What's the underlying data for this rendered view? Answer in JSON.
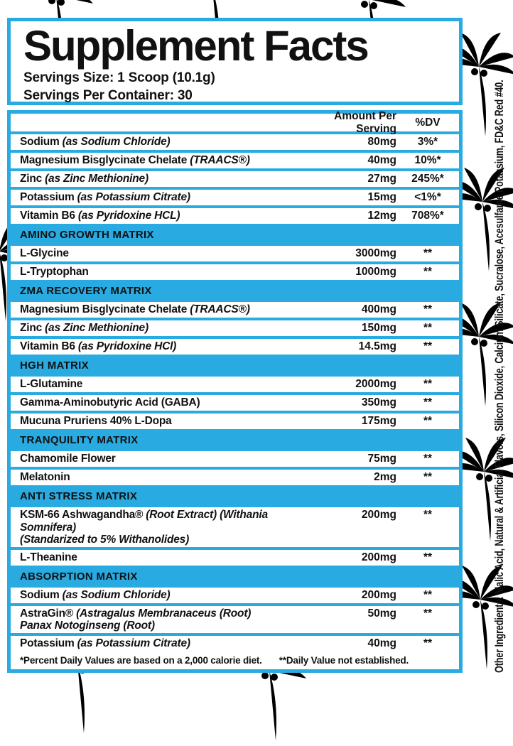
{
  "colors": {
    "accent": "#29abe2",
    "watermark": "#e2e2e2"
  },
  "header": {
    "title": "Supplement Facts",
    "serving_size": "Servings Size: 1 Scoop (10.1g)",
    "servings_per_container": "Servings Per Container: 30"
  },
  "table": {
    "columns": {
      "amount": "Amount Per Serving",
      "dv": "%DV"
    },
    "rows": [
      {
        "type": "item",
        "name": "Sodium",
        "detail": "(as Sodium Chloride)",
        "amount": "80mg",
        "dv": "3%*"
      },
      {
        "type": "item",
        "name": "Magnesium Bisglycinate Chelate",
        "detail": "(TRAACS®)",
        "amount": "40mg",
        "dv": "10%*"
      },
      {
        "type": "item",
        "name": "Zinc",
        "detail": "(as Zinc Methionine)",
        "amount": "27mg",
        "dv": "245%*"
      },
      {
        "type": "item",
        "name": "Potassium",
        "detail": "(as Potassium Citrate)",
        "amount": "15mg",
        "dv": "<1%*"
      },
      {
        "type": "item",
        "name": "Vitamin B6",
        "detail": "(as Pyridoxine HCL)",
        "amount": "12mg",
        "dv": "708%*"
      },
      {
        "type": "section",
        "label": "AMINO GROWTH MATRIX"
      },
      {
        "type": "item",
        "name": "L-Glycine",
        "amount": "3000mg",
        "dv": "**"
      },
      {
        "type": "item",
        "name": "L-Tryptophan",
        "amount": "1000mg",
        "dv": "**"
      },
      {
        "type": "section",
        "label": "ZMA RECOVERY MATRIX"
      },
      {
        "type": "item",
        "name": "Magnesium Bisglycinate Chelate",
        "detail": "(TRAACS®)",
        "amount": "400mg",
        "dv": "**"
      },
      {
        "type": "item",
        "name": "Zinc",
        "detail": "(as Zinc Methionine)",
        "amount": "150mg",
        "dv": "**"
      },
      {
        "type": "item",
        "name": "Vitamin B6",
        "detail": "(as Pyridoxine HCl)",
        "amount": "14.5mg",
        "dv": "**"
      },
      {
        "type": "section",
        "label": "HGH MATRIX"
      },
      {
        "type": "item",
        "name": "L-Glutamine",
        "amount": "2000mg",
        "dv": "**"
      },
      {
        "type": "item",
        "name": "Gamma-Aminobutyric Acid (GABA)",
        "amount": "350mg",
        "dv": "**"
      },
      {
        "type": "item",
        "name": "Mucuna Pruriens 40% L-Dopa",
        "amount": "175mg",
        "dv": "**"
      },
      {
        "type": "section",
        "label": "TRANQUILITY MATRIX"
      },
      {
        "type": "item",
        "name": "Chamomile Flower",
        "amount": "75mg",
        "dv": "**"
      },
      {
        "type": "item",
        "name": "Melatonin",
        "amount": "2mg",
        "dv": "**"
      },
      {
        "type": "section",
        "label": "ANTI STRESS MATRIX"
      },
      {
        "type": "item",
        "name": "KSM-66 Ashwagandha®",
        "detail": "(Root Extract) (Withania Somnifera)",
        "detail2": "(Standarized to 5% Withanolides)",
        "amount": "200mg",
        "dv": "**"
      },
      {
        "type": "item",
        "name": "L-Theanine",
        "amount": "200mg",
        "dv": "**"
      },
      {
        "type": "section",
        "label": "ABSORPTION MATRIX"
      },
      {
        "type": "item",
        "name": "Sodium",
        "detail": "(as Sodium Chloride)",
        "amount": "200mg",
        "dv": "**"
      },
      {
        "type": "item",
        "name": "AstraGin®",
        "detail": "(Astragalus Membranaceus (Root)",
        "detail2": "Panax Notoginseng (Root)",
        "amount": "50mg",
        "dv": "**"
      },
      {
        "type": "item",
        "name": "Potassium",
        "detail": "(as Potassium Citrate)",
        "amount": "40mg",
        "dv": "**"
      }
    ],
    "footnote_dv": "*Percent Daily Values are based on a 2,000 calorie diet.",
    "footnote_ne": "**Daily Value not established."
  },
  "side_text": "Other Ingredients: Malic Acid, Natural & Artificial Flavors, Silicon Dioxide, Calcium Silicate, Sucralose, Acesulfame Potassium, FD&C Red #40."
}
